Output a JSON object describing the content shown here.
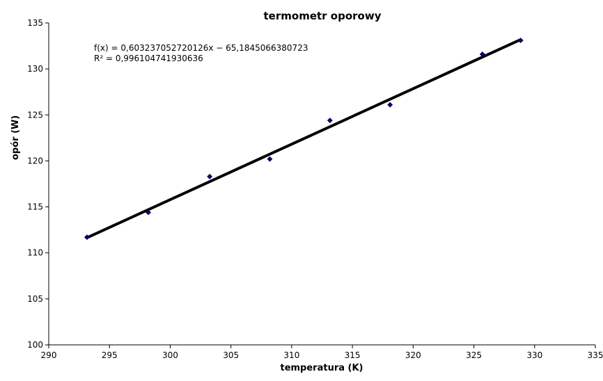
{
  "chart_data": {
    "type": "scatter",
    "title": "termometr oporowy",
    "xlabel": "temperatura (K)",
    "ylabel": "opór (W)",
    "xlim": [
      290,
      335
    ],
    "ylim": [
      100,
      135
    ],
    "xticks": [
      "290",
      "295",
      "300",
      "305",
      "310",
      "315",
      "320",
      "325",
      "330",
      "335"
    ],
    "yticks": [
      "100",
      "105",
      "110",
      "115",
      "120",
      "125",
      "130",
      "135"
    ],
    "grid": false,
    "legend": "none",
    "series": [
      {
        "x": [
          293.15,
          298.2,
          303.25,
          308.2,
          313.15,
          318.1,
          325.7,
          328.85
        ],
        "y": [
          111.7,
          114.4,
          118.3,
          120.2,
          124.4,
          126.1,
          131.6,
          133.1
        ],
        "marker": "diamond",
        "color": "#000080"
      }
    ],
    "trendline": {
      "slope": 0.603237052720126,
      "intercept": -65.1845066380723,
      "x_range": [
        293.15,
        328.85
      ],
      "color": "#000000"
    },
    "annotations": [
      "f(x) = 0,603237052720126x − 65,1845066380723",
      "R² = 0,996104741930636"
    ]
  }
}
